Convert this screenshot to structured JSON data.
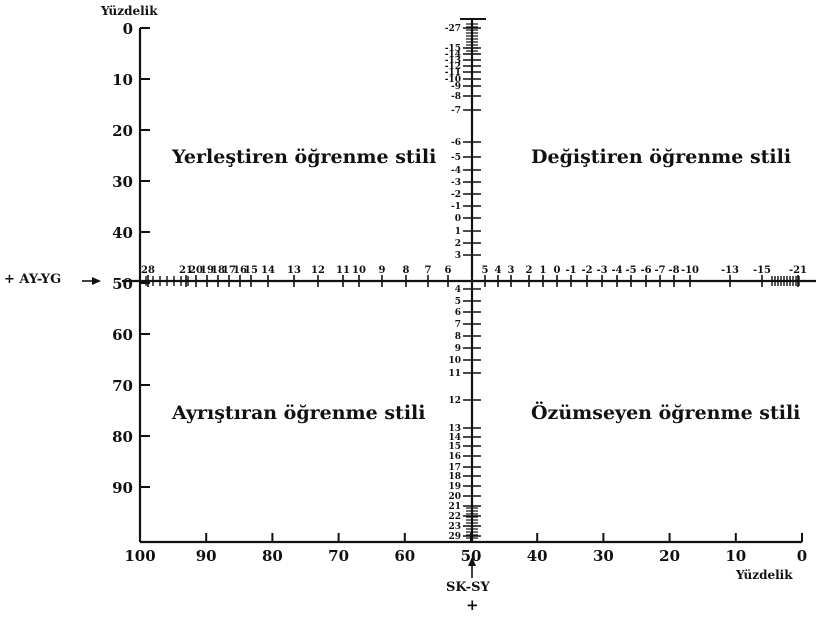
{
  "axes": {
    "left_title": "Yüzdelik",
    "bottom_title": "Yüzdelik",
    "horizontal_axis_label": "+ AY-YG",
    "vertical_axis_label": "SK-SY",
    "vertical_axis_sign": "+",
    "left_ticks": [
      "0",
      "10",
      "20",
      "30",
      "40",
      "50",
      "60",
      "70",
      "80",
      "90"
    ],
    "bottom_ticks": [
      "100",
      "90",
      "80",
      "70",
      "60",
      "50",
      "40",
      "30",
      "20",
      "10",
      "0"
    ]
  },
  "quadrants": {
    "top_left": "Yerleştiren öğrenme stili",
    "top_right": "Değiştiren öğrenme stili",
    "bottom_left": "Ayrıştıran öğrenme stili",
    "bottom_right": "Özümseyen öğrenme stili"
  },
  "vertical_scale_upper": [
    "-27",
    "-15",
    "-14",
    "-13",
    "-12",
    "-11",
    "-10",
    "-9",
    "-8",
    "-7",
    "-6",
    "-5",
    "-4",
    "-3",
    "-2",
    "-1",
    "0",
    "1",
    "2",
    "3"
  ],
  "vertical_scale_lower": [
    "4",
    "5",
    "6",
    "7",
    "8",
    "9",
    "10",
    "11",
    "12",
    "13",
    "14",
    "15",
    "16",
    "17",
    "18",
    "19",
    "20",
    "21",
    "22",
    "23",
    "29"
  ],
  "horizontal_scale_left": [
    "28",
    "21",
    "20",
    "19",
    "18",
    "17",
    "16",
    "15",
    "14",
    "13",
    "12",
    "11",
    "10",
    "9",
    "8",
    "7",
    "6"
  ],
  "horizontal_scale_right": [
    "5",
    "4",
    "3",
    "2",
    "1",
    "0",
    "-1",
    "-2",
    "-3",
    "-4",
    "-5",
    "-6",
    "-7",
    "-8",
    "-10",
    "-13",
    "-15",
    "-21"
  ],
  "colors": {
    "ink": "#111111",
    "background": "#ffffff"
  }
}
